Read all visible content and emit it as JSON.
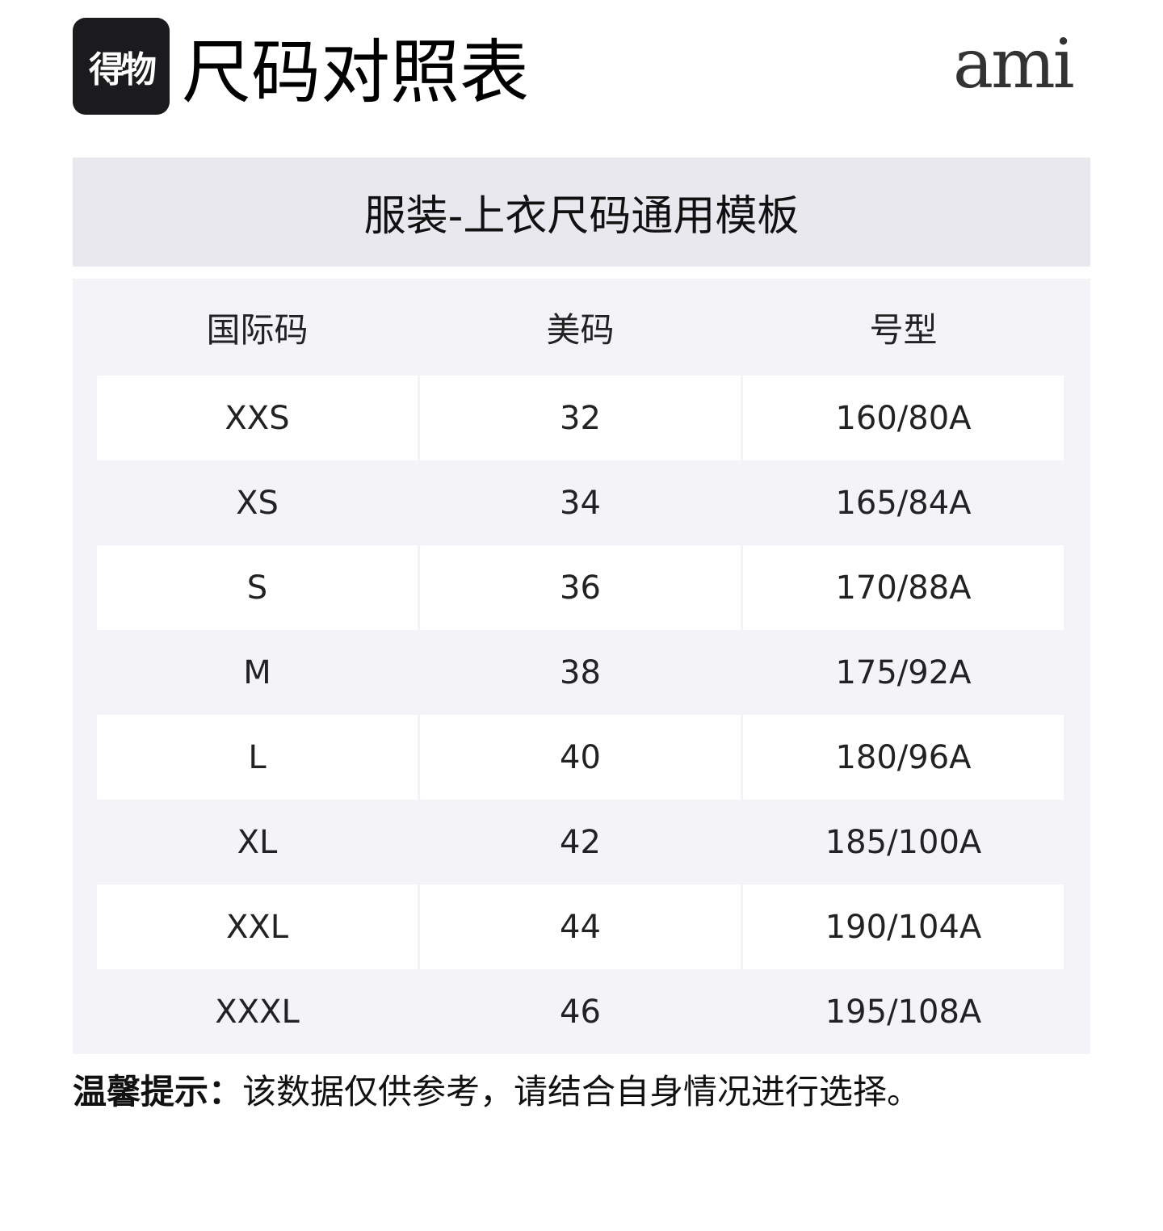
{
  "logo": "得物",
  "title": "尺码对照表",
  "brand": "ami",
  "template_title": "服装-上衣尺码通用模板",
  "table": {
    "headers": [
      "国际码",
      "美码",
      "号型"
    ],
    "rows": [
      [
        "XXS",
        "32",
        "160/80A"
      ],
      [
        "XS",
        "34",
        "165/84A"
      ],
      [
        "S",
        "36",
        "170/88A"
      ],
      [
        "M",
        "38",
        "175/92A"
      ],
      [
        "L",
        "40",
        "180/96A"
      ],
      [
        "XL",
        "42",
        "185/100A"
      ],
      [
        "XXL",
        "44",
        "190/104A"
      ],
      [
        "XXXL",
        "46",
        "195/108A"
      ]
    ]
  },
  "tip": {
    "label": "温馨提示：",
    "text": "该数据仅供参考，请结合自身情况进行选择。"
  }
}
